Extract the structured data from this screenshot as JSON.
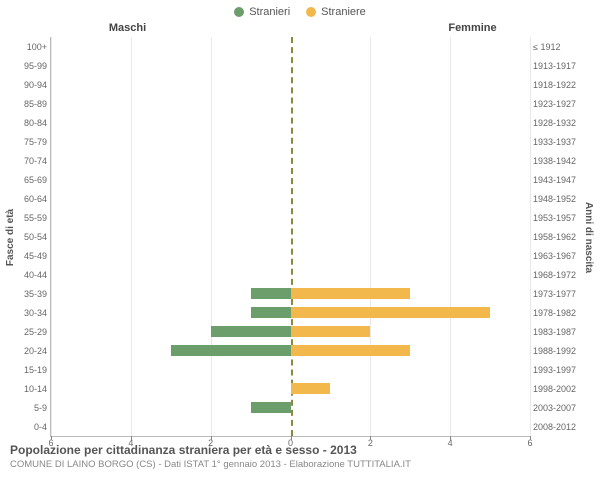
{
  "chart": {
    "type": "population-pyramid",
    "legend": [
      {
        "label": "Stranieri",
        "color": "#6c9e6c"
      },
      {
        "label": "Straniere",
        "color": "#f2b84b"
      }
    ],
    "panel_titles": {
      "left": "Maschi",
      "right": "Femmine"
    },
    "y_left_title": "Fasce di età",
    "y_right_title": "Anni di nascita",
    "age_labels": [
      "100+",
      "95-99",
      "90-94",
      "85-89",
      "80-84",
      "75-79",
      "70-74",
      "65-69",
      "60-64",
      "55-59",
      "50-54",
      "45-49",
      "40-44",
      "35-39",
      "30-34",
      "25-29",
      "20-24",
      "15-19",
      "10-14",
      "5-9",
      "0-4"
    ],
    "birth_labels": [
      "≤ 1912",
      "1913-1917",
      "1918-1922",
      "1923-1927",
      "1928-1932",
      "1933-1937",
      "1938-1942",
      "1943-1947",
      "1948-1952",
      "1953-1957",
      "1958-1962",
      "1963-1967",
      "1968-1972",
      "1973-1977",
      "1978-1982",
      "1983-1987",
      "1988-1992",
      "1993-1997",
      "1998-2002",
      "2003-2007",
      "2008-2012"
    ],
    "male_values": [
      0,
      0,
      0,
      0,
      0,
      0,
      0,
      0,
      0,
      0,
      0,
      0,
      0,
      1,
      1,
      2,
      3,
      0,
      0,
      1,
      0
    ],
    "female_values": [
      0,
      0,
      0,
      0,
      0,
      0,
      0,
      0,
      0,
      0,
      0,
      0,
      0,
      3,
      5,
      2,
      3,
      0,
      1,
      0,
      0
    ],
    "x_max": 6,
    "x_ticks_left": [
      6,
      4,
      2,
      0
    ],
    "x_ticks_right": [
      0,
      2,
      4,
      6
    ],
    "bar_color_left": "#6c9e6c",
    "bar_color_right": "#f2b84b",
    "grid_color": "#e9e9e9",
    "centerline_color": "#8a8a3a",
    "background": "#ffffff"
  },
  "caption": {
    "title": "Popolazione per cittadinanza straniera per età e sesso - 2013",
    "subtitle": "COMUNE DI LAINO BORGO (CS) - Dati ISTAT 1° gennaio 2013 - Elaborazione TUTTITALIA.IT"
  }
}
